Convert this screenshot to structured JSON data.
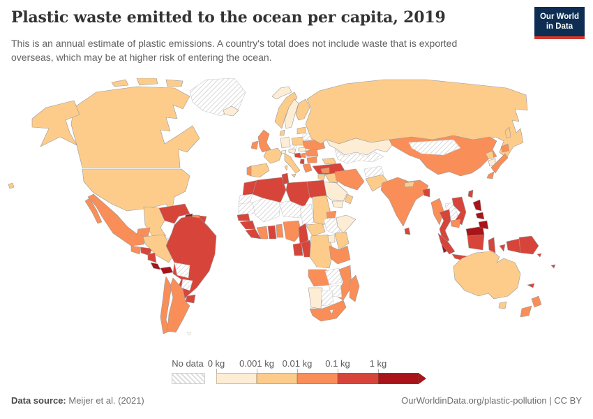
{
  "header": {
    "title": "Plastic waste emitted to the ocean per capita, 2019",
    "subtitle": "This is an annual estimate of plastic emissions. A country's total does not include waste that is exported overseas, which may be at higher risk of entering the ocean.",
    "logo": {
      "line1": "Our World",
      "line2": "in Data",
      "bg_color": "#0d2d52",
      "accent_color": "#d7382b"
    }
  },
  "legend": {
    "no_data_label": "No data",
    "tick_labels": [
      "0 kg",
      "0.001 kg",
      "0.01 kg",
      "0.1 kg",
      "1 kg"
    ],
    "colors": [
      "#FDEDD5",
      "#FDCC8B",
      "#F98E59",
      "#D7453A",
      "#A81419"
    ],
    "border_color": "#999999",
    "no_data_border": "#c9c9c9"
  },
  "footer": {
    "source_label": "Data source:",
    "source_value": "Meijer et al. (2021)",
    "link": "OurWorldinData.org/plastic-pollution",
    "separator": " | ",
    "license": "CC BY"
  },
  "chart_data": {
    "type": "choropleth",
    "title": "Plastic waste emitted to the ocean per capita, 2019",
    "unit": "kg per capita",
    "bins": [
      "No data",
      "0–0.001 kg",
      "0.001–0.01 kg",
      "0.01–0.1 kg",
      "0.1–1 kg",
      "≥1 kg"
    ],
    "bin_colors": [
      "hatched",
      "#FDEDD5",
      "#FDCC8B",
      "#F98E59",
      "#D7453A",
      "#A81419"
    ],
    "countries": {
      "Canada": 2,
      "United States": 2,
      "Alaska (United States)": 2,
      "Hawaii (United States)": 2,
      "Greenland": 0,
      "Mexico": 3,
      "Guatemala": 3,
      "Honduras": 4,
      "Nicaragua": 4,
      "Costa Rica": 5,
      "Panama": 5,
      "Cuba": 0,
      "Jamaica": 3,
      "Haiti": 4,
      "Puerto Rico": 4,
      "Lesser Antilles": 4,
      "Trinidad and Tobago": 5,
      "Colombia": 2,
      "Venezuela": 4,
      "Guyana": 5,
      "Suriname": 3,
      "French Guiana": 4,
      "Ecuador": 3,
      "Peru": 2,
      "Brazil": 4,
      "Bolivia": 0,
      "Paraguay": 0,
      "Uruguay": 4,
      "Argentina": 3,
      "Chile": 3,
      "Falkland Islands": 0,
      "Iceland": 1,
      "Svalbard": 1,
      "Norway": 2,
      "Sweden": 1,
      "Finland": 2,
      "Denmark": 2,
      "United Kingdom": 3,
      "Ireland": 3,
      "France": 2,
      "Spain": 2,
      "Portugal": 3,
      "Germany": 1,
      "Switzerland": 1,
      "Austria": 1,
      "Czechia": 0,
      "Poland": 2,
      "Lithuania": 2,
      "Belarus": 0,
      "Ukraine": 3,
      "Romania": 3,
      "Hungary": 1,
      "Croatia": 4,
      "Serbia": 3,
      "Albania": 4,
      "Greece": 3,
      "Bulgaria": 3,
      "Italy": 2,
      "Russia": 2,
      "Turkey": 4,
      "Georgia": 2,
      "Kazakhstan": 1,
      "Uzbekistan": 0,
      "Mongolia": 0,
      "Afghanistan": 0,
      "Iran": 3,
      "Iraq": 2,
      "Syria": 3,
      "Israel": 2,
      "Saudi Arabia": 1,
      "Yemen": 1,
      "Oman": 2,
      "Pakistan": 2,
      "India": 3,
      "Nepal": 2,
      "Bangladesh": 4,
      "Sri Lanka": 4,
      "Myanmar": 3,
      "Thailand": 4,
      "Laos": 0,
      "Vietnam": 4,
      "Cambodia": 3,
      "Malaysia": 5,
      "Indonesia": 4,
      "Philippines": 5,
      "China": 3,
      "North Korea": 2,
      "South Korea": 1,
      "Japan": 3,
      "Taiwan": 4,
      "Morocco": 4,
      "Western Sahara": 0,
      "Algeria": 4,
      "Tunisia": 4,
      "Libya": 4,
      "Egypt": 4,
      "Mauritania": 0,
      "Mali": 0,
      "Niger": 0,
      "Chad": 0,
      "Sudan": 2,
      "Eritrea": 3,
      "Ethiopia": 0,
      "Somalia": 1,
      "Senegal": 4,
      "Guinea": 4,
      "Liberia": 4,
      "Cote d'Ivoire": 3,
      "Ghana": 4,
      "Benin": 3,
      "Nigeria": 3,
      "Cameroon": 4,
      "Central African Republic": 2,
      "Gabon": 4,
      "Congo": 4,
      "Democratic Republic of Congo": 2,
      "Uganda": 1,
      "Kenya": 2,
      "Tanzania": 3,
      "Angola": 3,
      "Zambia": 0,
      "Mozambique": 3,
      "Zimbabwe": 0,
      "Namibia": 1,
      "Botswana": 0,
      "South Africa": 3,
      "Lesotho": 1,
      "Madagascar": 3,
      "Australia": 2,
      "Tasmania (Australia)": 2,
      "New Zealand": 3,
      "Papua New Guinea": 4,
      "Fiji": 4,
      "Solomon Islands": 4,
      "New Caledonia": 4
    }
  }
}
